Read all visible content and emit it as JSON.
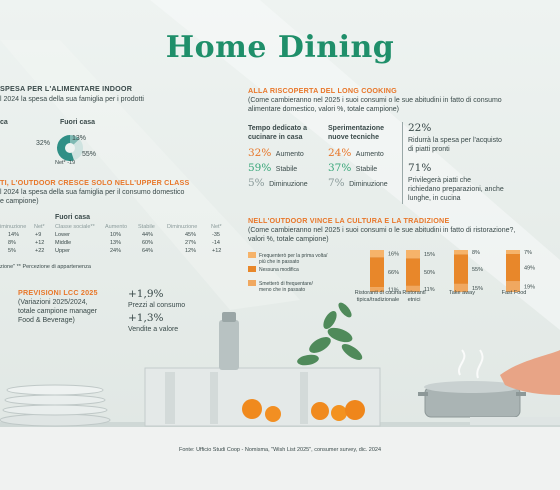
{
  "title": "Home Dining",
  "left_top": {
    "heading": "SPESA PER L'ALIMENTARE INDOOR",
    "desc1": "l 2024 la spesa della sua famiglia per i prodotti",
    "desc2": "",
    "label_left": "ca",
    "label_right": "Fuori casa",
    "pie": {
      "values": [
        13,
        32,
        55
      ],
      "labels": [
        "13%",
        "32%",
        "55%"
      ],
      "net": "Net* -19"
    }
  },
  "left_mid": {
    "heading": "TI, L'OUTDOOR CRESCE SOLO NELL'UPPER CLASS",
    "desc1": "l 2024 la spesa della sua famiglia per il consumo domestico",
    "desc2": "e campione)",
    "fuori_label": "Fuori casa",
    "left_cols": [
      "iminuzione",
      "Net*"
    ],
    "left_rows": [
      [
        "14%",
        "+9"
      ],
      [
        "8%",
        "+12"
      ],
      [
        "5%",
        "+22"
      ]
    ],
    "right_cols": [
      "Classe sociale**",
      "Aumento",
      "Stabile",
      "Diminuzione",
      "Net*"
    ],
    "right_rows": [
      [
        "Lower",
        "10%",
        "44%",
        "45%",
        "-35"
      ],
      [
        "Middle",
        "13%",
        "60%",
        "27%",
        "-14"
      ],
      [
        "Upper",
        "24%",
        "64%",
        "12%",
        "+12"
      ]
    ],
    "footnote": "zione\" ** Percezione di appartenenza"
  },
  "forecast": {
    "heading": "PREVISIONI LCC 2025",
    "desc": [
      "(Variazioni 2025/2024,",
      "totale campione manager",
      "Food & Beverage)"
    ],
    "v1": "+1,9%",
    "v1_label": "Prezzi al consumo",
    "v2": "+1,3%",
    "v2_label": "Vendite a valore"
  },
  "long_cooking": {
    "heading": "ALLA RISCOPERTA DEL LONG COOKING",
    "desc": [
      "(Come cambieranno nel 2025 i suoi consumi o le sue abitudini in fatto di consumo",
      "alimentare domestico, valori %, totale campione)"
    ],
    "col1_title": [
      "Tempo dedicato a",
      "cucinare in casa"
    ],
    "col1": [
      {
        "value": "32%",
        "label": "Aumento"
      },
      {
        "value": "59%",
        "label": "Stabile"
      },
      {
        "value": "5%",
        "label": "Diminuzione"
      }
    ],
    "col2_title": [
      "Sperimentazione",
      "nuove tecniche"
    ],
    "col2": [
      {
        "value": "24%",
        "label": "Aumento"
      },
      {
        "value": "37%",
        "label": "Stabile"
      },
      {
        "value": "7%",
        "label": "Diminuzione"
      }
    ],
    "stat1": {
      "value": "22%",
      "text": [
        "Ridurrà la spesa per l'acquisto",
        "di piatti pronti"
      ]
    },
    "stat2": {
      "value": "71%",
      "text": [
        "Privilegerà piatti che",
        "richiedano preparazioni, anche",
        "lunghe, in cucina"
      ]
    }
  },
  "outdoor": {
    "heading": "NELL'OUTDOOR VINCE LA CULTURA E LA TRADIZIONE",
    "desc": [
      "(Come cambieranno nel 2025 i suoi consumi o le sue abitudini in fatto di ristorazione?,",
      "valori %, totale campione)"
    ]
  },
  "chart_data": {
    "type": "bar",
    "stacked": true,
    "categories": [
      "Ristoranti di cucina tipica/tradizionale",
      "Ristoranti etnici",
      "Take away",
      "Fast Food"
    ],
    "category_labels": [
      [
        "Ristoranti di cucina",
        "tipica/tradizionale"
      ],
      [
        "Ristoranti",
        "etnici"
      ],
      [
        "Take away"
      ],
      [
        "Fast Food"
      ]
    ],
    "series": [
      {
        "name": "Frequenterò per la prima volta/ più che in passato",
        "values": [
          16,
          15,
          8,
          7
        ],
        "color": "#f6b36a"
      },
      {
        "name": "Nessuna modifica",
        "values": [
          66,
          50,
          55,
          49
        ],
        "color": "#e8872a"
      },
      {
        "name": "Smetterò di frequentare/ meno che in passato",
        "values": [
          11,
          11,
          15,
          19
        ],
        "color": "#f0a860"
      }
    ],
    "value_labels": [
      [
        "16%",
        "66%",
        "11%"
      ],
      [
        "15%",
        "50%",
        "11%"
      ],
      [
        "8%",
        "55%",
        "15%"
      ],
      [
        "7%",
        "49%",
        "19%"
      ]
    ],
    "legend": [
      [
        "Frequenterò per la prima volta/",
        "più che in passato"
      ],
      [
        "Nessuna modifica"
      ],
      [
        "Smetterò di frequentare/",
        "meno che in passato"
      ]
    ],
    "legend_position": "left"
  },
  "source": "Fonte: Ufficio Studi Coop - Nomisma, \"Wish List 2025\", consumer survey, dic. 2024"
}
